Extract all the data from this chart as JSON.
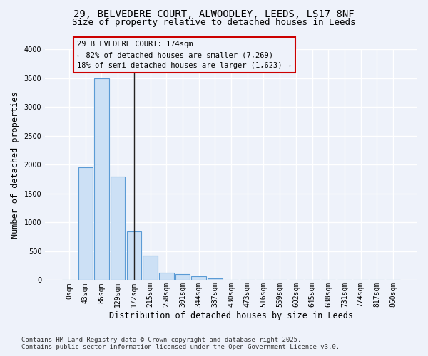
{
  "title_line1": "29, BELVEDERE COURT, ALWOODLEY, LEEDS, LS17 8NF",
  "title_line2": "Size of property relative to detached houses in Leeds",
  "xlabel": "Distribution of detached houses by size in Leeds",
  "ylabel": "Number of detached properties",
  "categories": [
    "0sqm",
    "43sqm",
    "86sqm",
    "129sqm",
    "172sqm",
    "215sqm",
    "258sqm",
    "301sqm",
    "344sqm",
    "387sqm",
    "430sqm",
    "473sqm",
    "516sqm",
    "559sqm",
    "602sqm",
    "645sqm",
    "688sqm",
    "731sqm",
    "774sqm",
    "817sqm",
    "860sqm"
  ],
  "values": [
    10,
    1950,
    3500,
    1800,
    850,
    430,
    130,
    100,
    70,
    35,
    10,
    0,
    0,
    0,
    0,
    0,
    0,
    0,
    0,
    0,
    0
  ],
  "bar_color": "#cce0f5",
  "bar_edge_color": "#5b9bd5",
  "highlight_index": 4,
  "highlight_line_color": "#222222",
  "ylim": [
    0,
    4000
  ],
  "yticks": [
    0,
    500,
    1000,
    1500,
    2000,
    2500,
    3000,
    3500,
    4000
  ],
  "annotation_box_color": "#cc0000",
  "annotation_text_line1": "29 BELVEDERE COURT: 174sqm",
  "annotation_text_line2": "← 82% of detached houses are smaller (7,269)",
  "annotation_text_line3": "18% of semi-detached houses are larger (1,623) →",
  "footnote_line1": "Contains HM Land Registry data © Crown copyright and database right 2025.",
  "footnote_line2": "Contains public sector information licensed under the Open Government Licence v3.0.",
  "background_color": "#eef2fa",
  "grid_color": "#ffffff",
  "title_fontsize": 10,
  "subtitle_fontsize": 9,
  "axis_label_fontsize": 8.5,
  "tick_fontsize": 7,
  "annotation_fontsize": 7.5,
  "footnote_fontsize": 6.5
}
